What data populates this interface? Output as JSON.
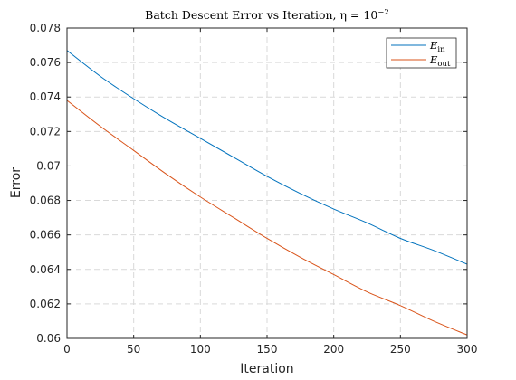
{
  "chart_data": {
    "type": "line",
    "title": "Batch Descent Error vs Iteration, η = 10",
    "title_superscript": "−2",
    "xlabel": "Iteration",
    "ylabel": "Error",
    "xlim": [
      0,
      300
    ],
    "ylim": [
      0.06,
      0.078
    ],
    "xticks": [
      0,
      50,
      100,
      150,
      200,
      250,
      300
    ],
    "xtick_labels": [
      "0",
      "50",
      "100",
      "150",
      "200",
      "250",
      "300"
    ],
    "yticks": [
      0.06,
      0.062,
      0.064,
      0.066,
      0.068,
      0.07,
      0.072,
      0.074,
      0.076,
      0.078
    ],
    "ytick_labels": [
      "0.06",
      "0.062",
      "0.064",
      "0.066",
      "0.068",
      "0.07",
      "0.072",
      "0.074",
      "0.076",
      "0.078"
    ],
    "grid": true,
    "legend_position": "top-right",
    "x": [
      0,
      25,
      50,
      75,
      100,
      125,
      150,
      175,
      200,
      225,
      250,
      275,
      300
    ],
    "series": [
      {
        "name": "E",
        "name_subscript": "in",
        "color": "#0072BD",
        "values": [
          0.0767,
          0.0752,
          0.0739,
          0.0727,
          0.0716,
          0.0705,
          0.0694,
          0.0684,
          0.0675,
          0.0667,
          0.0658,
          0.0651,
          0.0643
        ]
      },
      {
        "name": "E",
        "name_subscript": "out",
        "color": "#D95319",
        "values": [
          0.0738,
          0.0723,
          0.0709,
          0.0695,
          0.0682,
          0.067,
          0.0658,
          0.0647,
          0.0637,
          0.0627,
          0.0619,
          0.061,
          0.0602
        ]
      }
    ]
  }
}
